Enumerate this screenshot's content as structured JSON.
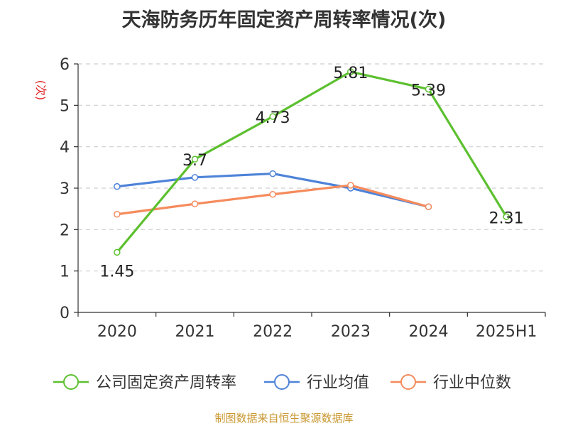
{
  "chart_data": {
    "type": "line",
    "title": "天海防务历年固定资产周转率情况(次)",
    "ylabel": "(次)",
    "xlabel": "",
    "ylim": [
      0,
      6
    ],
    "yticks": [
      "0",
      "1",
      "2",
      "3",
      "4",
      "5",
      "6"
    ],
    "categories": [
      "2020",
      "2021",
      "2022",
      "2023",
      "2024",
      "2025H1"
    ],
    "grid": true,
    "legend_position": "bottom",
    "series": [
      {
        "name": "公司固定资产周转率",
        "color": "#5cc02f",
        "values": [
          1.45,
          3.7,
          4.73,
          5.81,
          5.39,
          2.31
        ],
        "labels": [
          "1.45",
          "3.7",
          "4.73",
          "5.81",
          "5.39",
          "2.31"
        ]
      },
      {
        "name": "行业均值",
        "color": "#4e83d8",
        "values": [
          3.04,
          3.26,
          3.35,
          3.0,
          2.55,
          null
        ]
      },
      {
        "name": "行业中位数",
        "color": "#f58b5c",
        "values": [
          2.37,
          2.62,
          2.85,
          3.07,
          2.55,
          null
        ]
      }
    ]
  },
  "source": "制图数据来自恒生聚源数据库"
}
